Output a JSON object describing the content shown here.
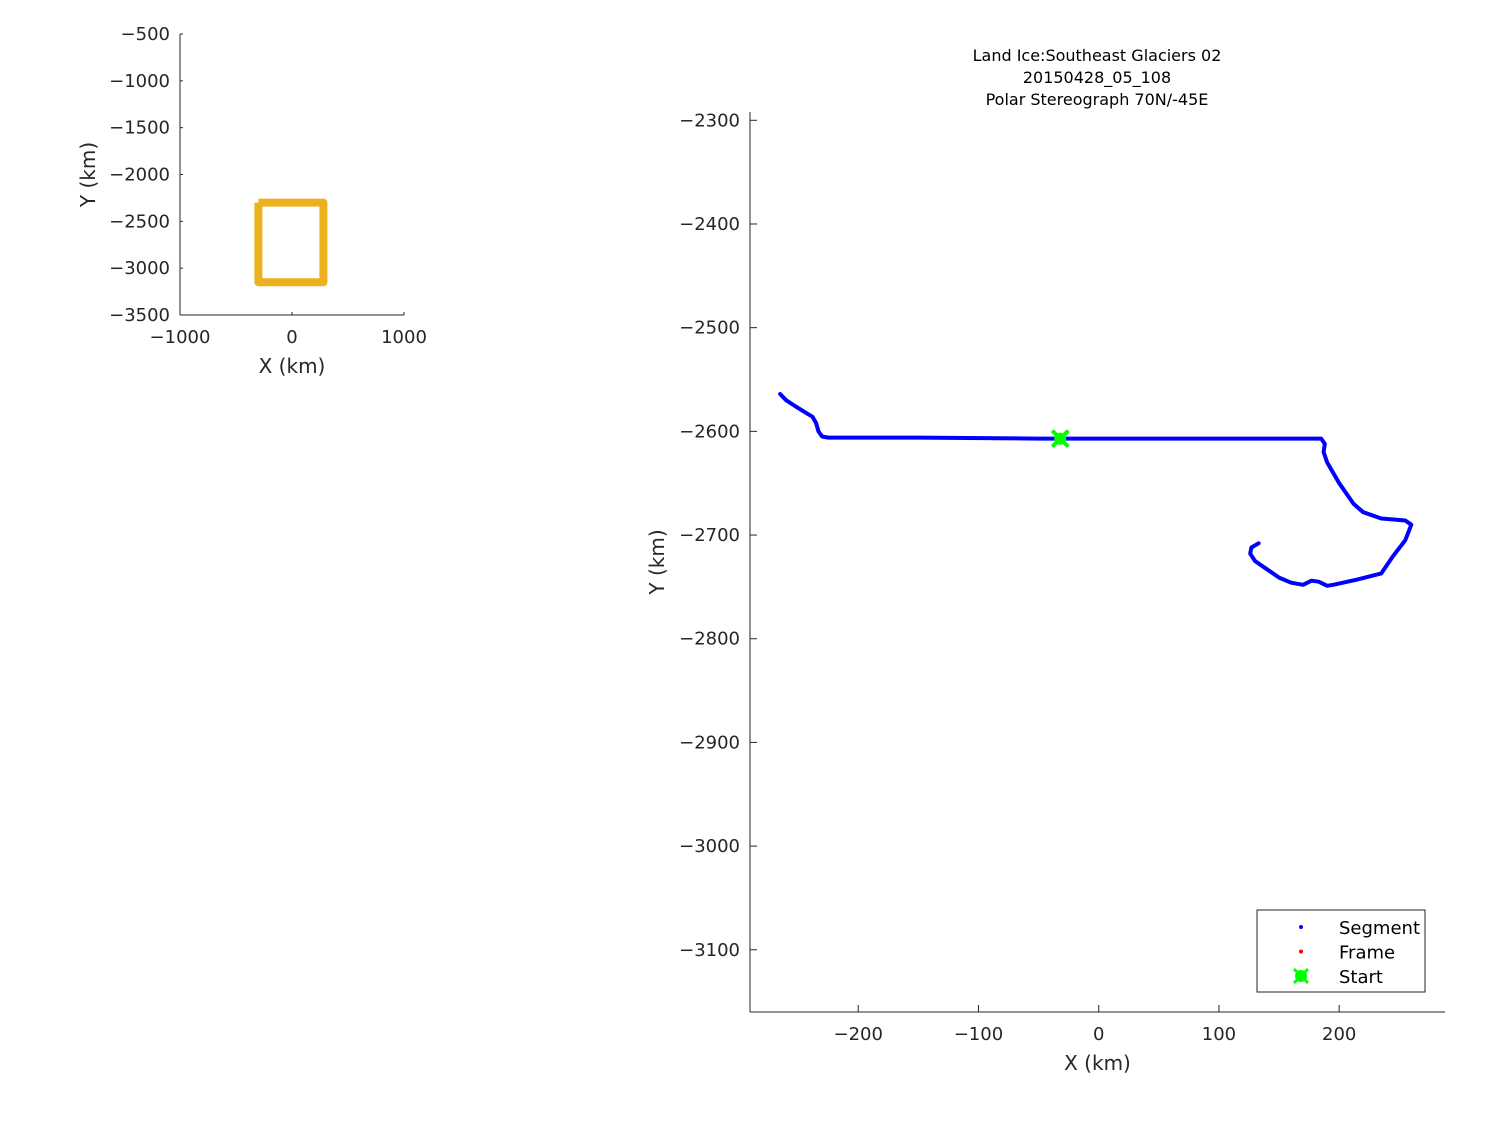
{
  "chart_data": [
    {
      "type": "line",
      "xlabel": "X (km)",
      "ylabel": "Y (km)",
      "xlim": [
        -1000,
        1000
      ],
      "ylim": [
        -3500,
        -500
      ],
      "x_ticks": [
        "−1000",
        "0",
        "1000"
      ],
      "y_ticks": [
        "−500",
        "−1000",
        "−1500",
        "−2000",
        "−2500",
        "−3000",
        "−3500"
      ],
      "series": [
        {
          "color": "#EDB120",
          "points": [
            [
              -300,
              -2300
            ],
            [
              280,
              -2300
            ],
            [
              280,
              -3150
            ],
            [
              -300,
              -3150
            ],
            [
              -300,
              -2300
            ]
          ]
        }
      ]
    },
    {
      "type": "line",
      "title": "Land Ice:Southeast  Glaciers 02",
      "subtitle_lines": [
        "20150428_05_108",
        "Polar Stereograph 70N/-45E"
      ],
      "xlabel": "X (km)",
      "ylabel": "Y (km)",
      "xlim": [
        -290,
        288
      ],
      "ylim": [
        -3160,
        -2292
      ],
      "x_ticks": [
        "−200",
        "−100",
        "0",
        "100",
        "200"
      ],
      "y_ticks": [
        "−2300",
        "−2400",
        "−2500",
        "−2600",
        "−2700",
        "−2800",
        "−2900",
        "−3000",
        "−3100"
      ],
      "series": [
        {
          "name": "Segment",
          "color": "#0000FF",
          "points": [
            [
              -265,
              -2564
            ],
            [
              -260,
              -2570
            ],
            [
              -252,
              -2576
            ],
            [
              -245,
              -2581
            ],
            [
              -238,
              -2586
            ],
            [
              -235,
              -2592
            ],
            [
              -233,
              -2600
            ],
            [
              -230,
              -2605
            ],
            [
              -225,
              -2606
            ],
            [
              -150,
              -2606
            ],
            [
              -50,
              -2607
            ],
            [
              0,
              -2607
            ],
            [
              100,
              -2607
            ],
            [
              185,
              -2607
            ],
            [
              188,
              -2612
            ],
            [
              187,
              -2620
            ],
            [
              190,
              -2630
            ],
            [
              200,
              -2650
            ],
            [
              212,
              -2670
            ],
            [
              220,
              -2678
            ],
            [
              235,
              -2684
            ],
            [
              255,
              -2686
            ],
            [
              260,
              -2690
            ],
            [
              255,
              -2705
            ],
            [
              245,
              -2720
            ],
            [
              235,
              -2737
            ],
            [
              215,
              -2743
            ],
            [
              195,
              -2748
            ],
            [
              190,
              -2749
            ],
            [
              183,
              -2745
            ],
            [
              177,
              -2744
            ],
            [
              170,
              -2748
            ],
            [
              160,
              -2746
            ],
            [
              150,
              -2741
            ],
            [
              140,
              -2733
            ],
            [
              130,
              -2725
            ],
            [
              126,
              -2718
            ],
            [
              127,
              -2712
            ],
            [
              133,
              -2708
            ]
          ]
        },
        {
          "name": "Frame",
          "color": "#FF0000",
          "points": []
        },
        {
          "name": "Start",
          "color": "#00FF00",
          "points": [
            [
              -32,
              -2607
            ]
          ]
        }
      ],
      "legend": {
        "position": "bottom-right",
        "entries": [
          "Segment",
          "Frame",
          "Start"
        ]
      }
    }
  ]
}
